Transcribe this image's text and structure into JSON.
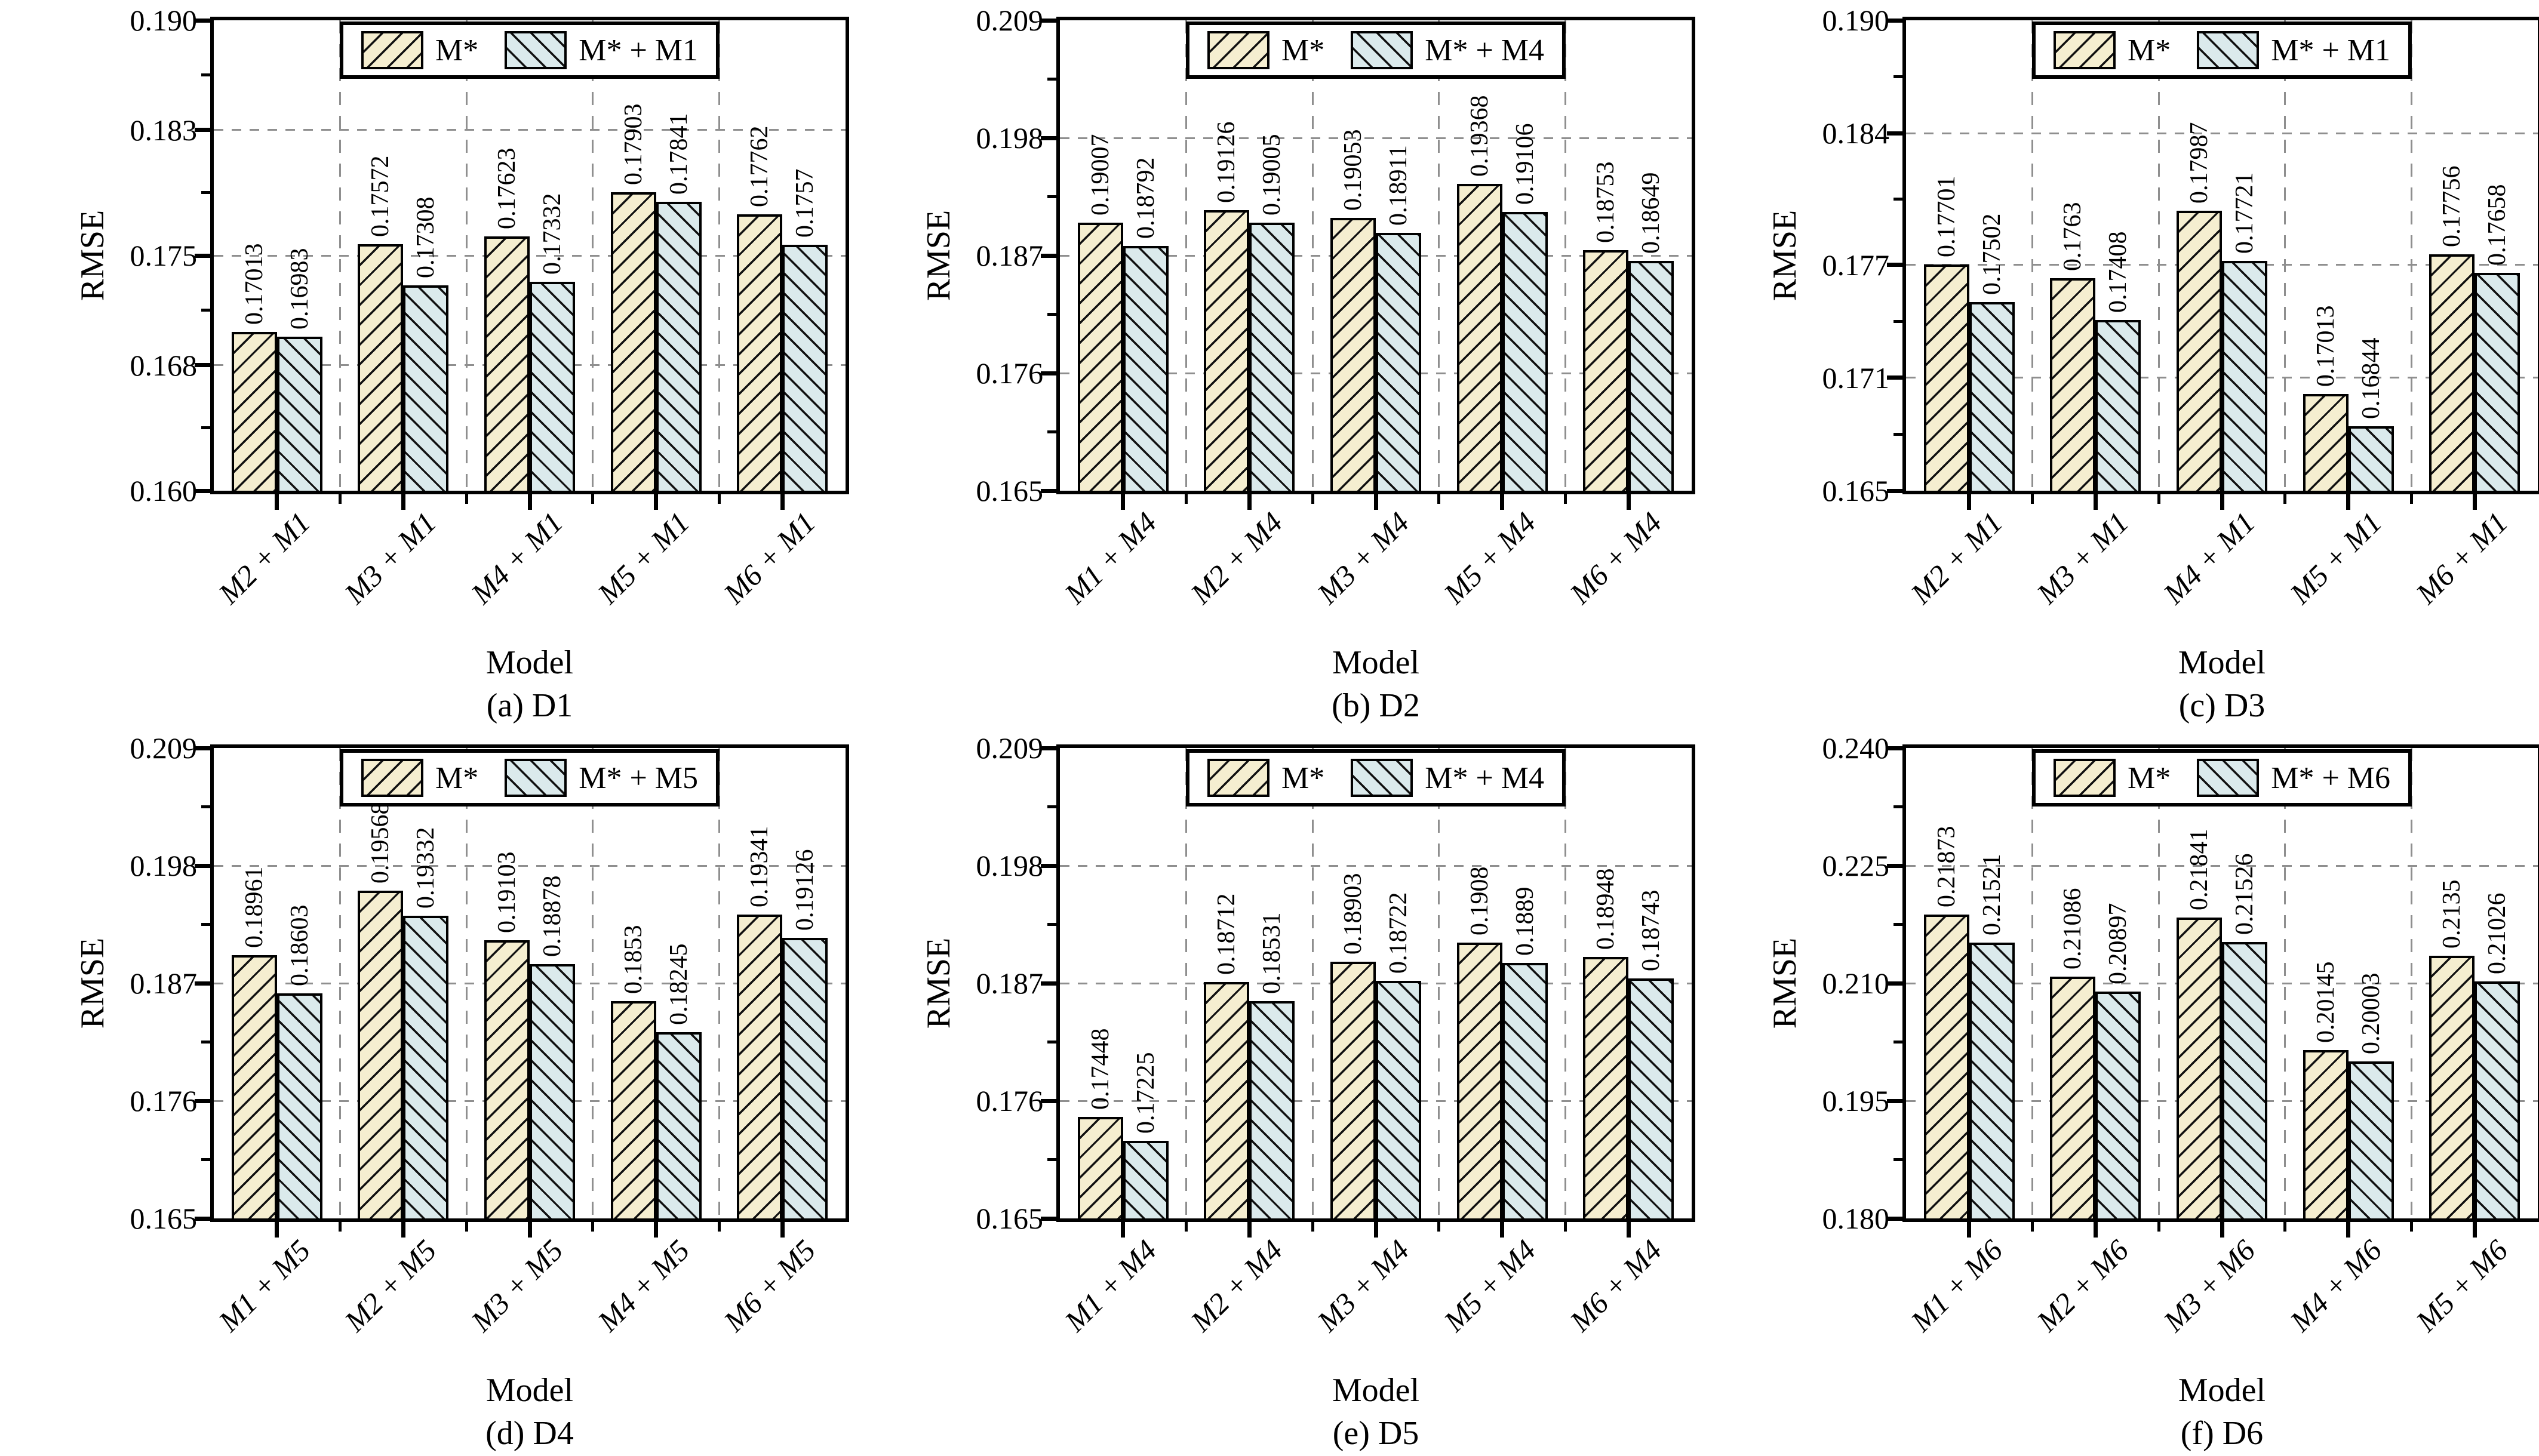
{
  "style": {
    "series1_fill": "#f5eed0",
    "series2_fill": "#dbeaec",
    "hatch_color": "#111111",
    "grid_color": "#8f8f8f",
    "axis_color": "#000000"
  },
  "chart_data": [
    {
      "type": "bar",
      "title": "(a) D1",
      "xlabel": "Model",
      "ylabel": "RMSE",
      "ylim": [
        0.16,
        0.19
      ],
      "ytick_labels": [
        "0.190",
        "0.183",
        "0.175",
        "0.168",
        "0.160"
      ],
      "grid": true,
      "legend_position": "top-center",
      "categories": [
        "M2 + M1",
        "M3 + M1",
        "M4 + M1",
        "M5 + M1",
        "M6 + M1"
      ],
      "series": [
        {
          "name": "M*",
          "values": [
            0.17013,
            0.17572,
            0.17623,
            0.17903,
            0.17762
          ]
        },
        {
          "name": "M* + M1",
          "values": [
            0.16983,
            0.17308,
            0.17332,
            0.17841,
            0.1757
          ]
        }
      ]
    },
    {
      "type": "bar",
      "title": "(b) D2",
      "xlabel": "Model",
      "ylabel": "RMSE",
      "ylim": [
        0.165,
        0.209
      ],
      "ytick_labels": [
        "0.209",
        "0.198",
        "0.187",
        "0.176",
        "0.165"
      ],
      "grid": true,
      "legend_position": "top-center",
      "categories": [
        "M1 + M4",
        "M2 + M4",
        "M3 + M4",
        "M5 + M4",
        "M6 + M4"
      ],
      "series": [
        {
          "name": "M*",
          "values": [
            0.19007,
            0.19126,
            0.19053,
            0.19368,
            0.18753
          ]
        },
        {
          "name": "M* + M4",
          "values": [
            0.18792,
            0.19005,
            0.18911,
            0.19106,
            0.18649
          ]
        }
      ]
    },
    {
      "type": "bar",
      "title": "(c) D3",
      "xlabel": "Model",
      "ylabel": "RMSE",
      "ylim": [
        0.165,
        0.19
      ],
      "ytick_labels": [
        "0.190",
        "0.184",
        "0.177",
        "0.171",
        "0.165"
      ],
      "grid": true,
      "legend_position": "top-center",
      "categories": [
        "M2 + M1",
        "M3 + M1",
        "M4 + M1",
        "M5 + M1",
        "M6 + M1"
      ],
      "series": [
        {
          "name": "M*",
          "values": [
            0.17701,
            0.1763,
            0.17987,
            0.17013,
            0.17756
          ]
        },
        {
          "name": "M* + M1",
          "values": [
            0.17502,
            0.17408,
            0.17721,
            0.16844,
            0.17658
          ]
        }
      ]
    },
    {
      "type": "bar",
      "title": "(d) D4",
      "xlabel": "Model",
      "ylabel": "RMSE",
      "ylim": [
        0.165,
        0.209
      ],
      "ytick_labels": [
        "0.209",
        "0.198",
        "0.187",
        "0.176",
        "0.165"
      ],
      "grid": true,
      "legend_position": "top-center",
      "categories": [
        "M1 + M5",
        "M2 + M5",
        "M3 + M5",
        "M4 + M5",
        "M6 + M5"
      ],
      "series": [
        {
          "name": "M*",
          "values": [
            0.18961,
            0.19568,
            0.19103,
            0.1853,
            0.19341
          ]
        },
        {
          "name": "M* + M5",
          "values": [
            0.18603,
            0.19332,
            0.18878,
            0.18245,
            0.19126
          ]
        }
      ]
    },
    {
      "type": "bar",
      "title": "(e) D5",
      "xlabel": "Model",
      "ylabel": "RMSE",
      "ylim": [
        0.165,
        0.209
      ],
      "ytick_labels": [
        "0.209",
        "0.198",
        "0.187",
        "0.176",
        "0.165"
      ],
      "grid": true,
      "legend_position": "top-center",
      "categories": [
        "M1 + M4",
        "M2 + M4",
        "M3 + M4",
        "M5 + M4",
        "M6 + M4"
      ],
      "series": [
        {
          "name": "M*",
          "values": [
            0.17448,
            0.18712,
            0.18903,
            0.1908,
            0.18948
          ]
        },
        {
          "name": "M* + M4",
          "values": [
            0.17225,
            0.18531,
            0.18722,
            0.1889,
            0.18743
          ]
        }
      ]
    },
    {
      "type": "bar",
      "title": "(f) D6",
      "xlabel": "Model",
      "ylabel": "RMSE",
      "ylim": [
        0.18,
        0.24
      ],
      "ytick_labels": [
        "0.240",
        "0.225",
        "0.210",
        "0.195",
        "0.180"
      ],
      "grid": true,
      "legend_position": "top-center",
      "categories": [
        "M1 + M6",
        "M2 + M6",
        "M3 + M6",
        "M4 + M6",
        "M5 + M6"
      ],
      "series": [
        {
          "name": "M*",
          "values": [
            0.21873,
            0.21086,
            0.21841,
            0.20145,
            0.2135
          ]
        },
        {
          "name": "M* + M6",
          "values": [
            0.21521,
            0.20897,
            0.21526,
            0.20003,
            0.21026
          ]
        }
      ]
    }
  ]
}
